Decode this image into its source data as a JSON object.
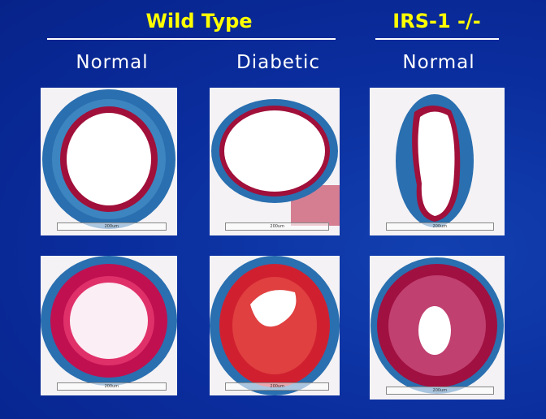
{
  "headers": {
    "wild_type": "Wild Type",
    "irs1": "IRS-1 -/-"
  },
  "columns": [
    "Normal",
    "Diabetic",
    "Normal"
  ],
  "scale_label": "200um",
  "colors": {
    "background": "#0a2c9c",
    "title": "#ffff00",
    "collagen": "#2a6fb0",
    "media": "#a0103a"
  }
}
